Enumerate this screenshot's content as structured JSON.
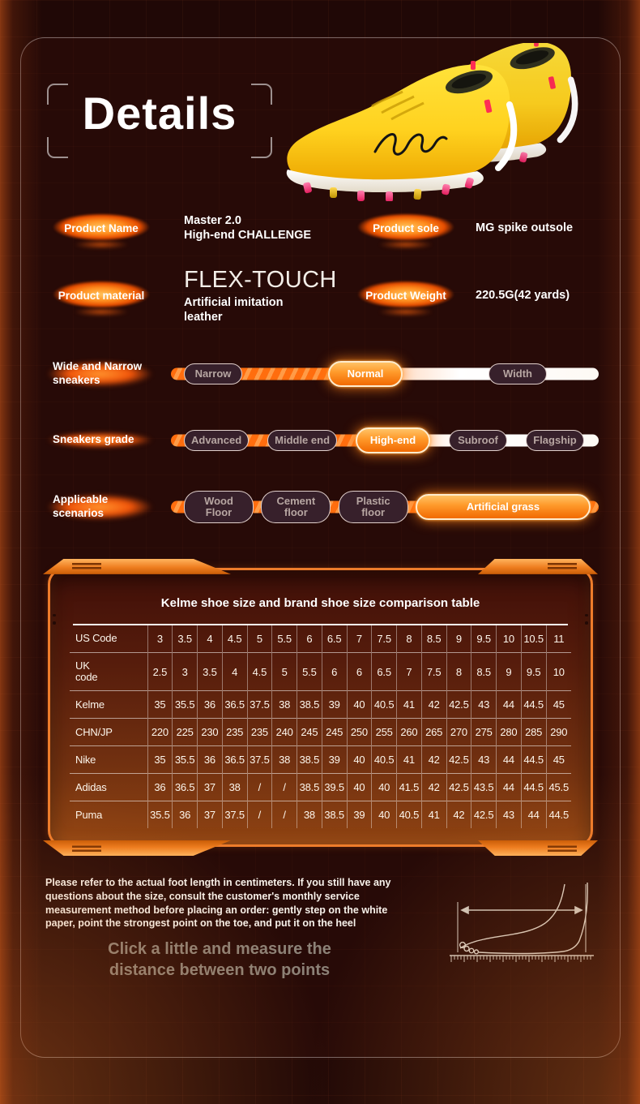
{
  "hero": {
    "title": "Details"
  },
  "specs": {
    "name": {
      "label": "Product Name",
      "line1": "Master 2.0",
      "line2": "High-end CHALLENGE"
    },
    "sole": {
      "label": "Product sole",
      "value": "MG spike outsole"
    },
    "material": {
      "label": "Product material",
      "big": "FLEX-TOUCH",
      "line1": "Artificial imitation",
      "line2": "leather"
    },
    "weight": {
      "label": "Product Weight",
      "value": "220.5G(42 yards)"
    }
  },
  "selectors": [
    {
      "label": "Wide and Narrow\nsneakers",
      "options": [
        {
          "label": "Narrow"
        },
        {
          "label": "Normal",
          "active": true
        },
        {
          "label": "Width"
        }
      ]
    },
    {
      "label": "Sneakers grade",
      "options": [
        {
          "label": "Advanced"
        },
        {
          "label": "Middle end"
        },
        {
          "label": "High-end",
          "active": true
        },
        {
          "label": "Subroof"
        },
        {
          "label": "Flagship"
        }
      ]
    },
    {
      "label": "Applicable\nscenarios",
      "options": [
        {
          "label": "Wood Floor"
        },
        {
          "label": "Cement floor"
        },
        {
          "label": "Plastic floor"
        },
        {
          "label": "Artificial grass",
          "active": true,
          "wide": true
        }
      ]
    }
  ],
  "size_table": {
    "title": "Kelme shoe size and brand shoe size comparison table",
    "rows": [
      {
        "label": "US Code",
        "style": "small",
        "values": [
          "3",
          "3.5",
          "4",
          "4.5",
          "5",
          "5.5",
          "6",
          "6.5",
          "7",
          "7.5",
          "8",
          "8.5",
          "9",
          "9.5",
          "10",
          "10.5",
          "11"
        ]
      },
      {
        "label": "UK\ncode",
        "style": "small",
        "values": [
          "2.5",
          "3",
          "3.5",
          "4",
          "4.5",
          "5",
          "5.5",
          "6",
          "6",
          "6.5",
          "7",
          "7.5",
          "8",
          "8.5",
          "9",
          "9.5",
          "10"
        ]
      },
      {
        "label": "Kelme",
        "style": "big",
        "values": [
          "35",
          "35.5",
          "36",
          "36.5",
          "37.5",
          "38",
          "38.5",
          "39",
          "40",
          "40.5",
          "41",
          "42",
          "42.5",
          "43",
          "44",
          "44.5",
          "45"
        ]
      },
      {
        "label": "CHN/JP",
        "style": "plain",
        "values": [
          "220",
          "225",
          "230",
          "235",
          "235",
          "240",
          "245",
          "245",
          "250",
          "255",
          "260",
          "265",
          "270",
          "275",
          "280",
          "285",
          "290"
        ]
      },
      {
        "label": "Nike",
        "style": "small",
        "values": [
          "35",
          "35.5",
          "36",
          "36.5",
          "37.5",
          "38",
          "38.5",
          "39",
          "40",
          "40.5",
          "41",
          "42",
          "42.5",
          "43",
          "44",
          "44.5",
          "45"
        ]
      },
      {
        "label": "Adidas",
        "style": "big",
        "values": [
          "36",
          "36.5",
          "37",
          "38",
          "/",
          "/",
          "38.5",
          "39.5",
          "40",
          "40",
          "41.5",
          "42",
          "42.5",
          "43.5",
          "44",
          "44.5",
          "45.5"
        ]
      },
      {
        "label": "Puma",
        "style": "big",
        "values": [
          "35.5",
          "36",
          "37",
          "37.5",
          "/",
          "/",
          "38",
          "38.5",
          "39",
          "40",
          "40.5",
          "41",
          "42",
          "42.5",
          "43",
          "44",
          "44.5"
        ]
      }
    ]
  },
  "footer": {
    "note": "Please refer to the actual foot length in centimeters. If you still have any questions about the size, consult the customer's monthly service measurement method before placing an order: gently step on the white paper, point the strongest point on the toe, and put it on the heel",
    "cta": "Click a little and measure the\ndistance between two points"
  },
  "colors": {
    "background": "#200806",
    "accent_orange": "#f97316",
    "active_pill_top": "#ffc266",
    "active_pill_bottom": "#f16a02",
    "panel_border": "#ee7c2b",
    "track_stripe": "#ff6d0e",
    "dark_pill": "#37202b",
    "cta_text": "#8c8177",
    "shoe_yellow": "#ffd21f"
  }
}
